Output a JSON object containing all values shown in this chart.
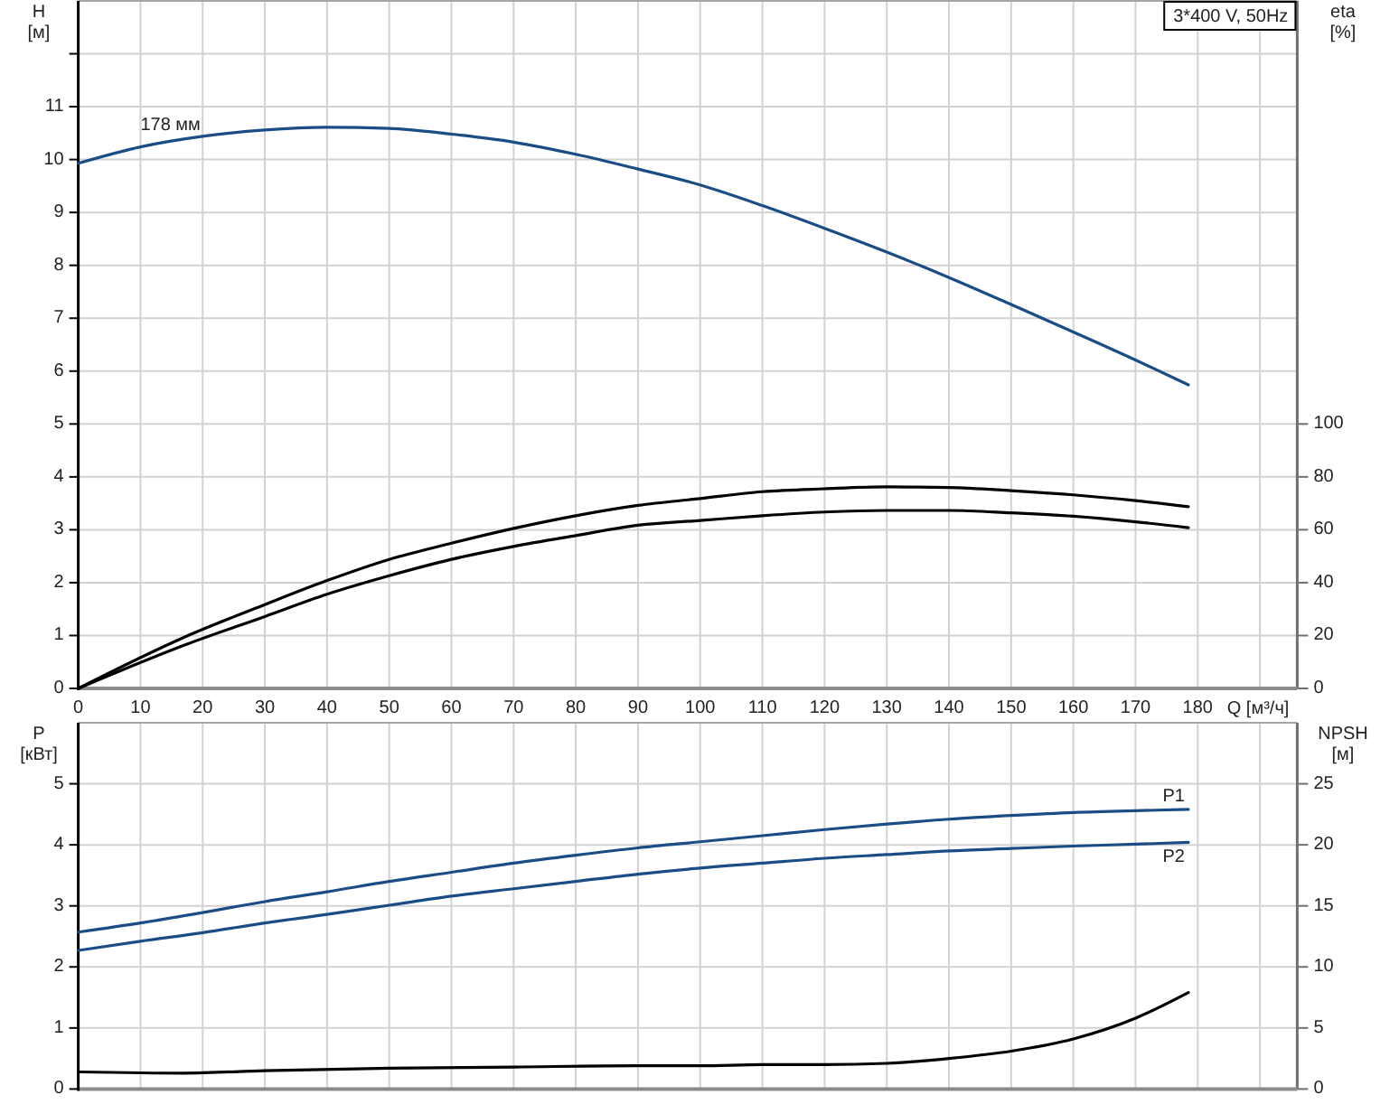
{
  "chart_data": [
    {
      "type": "line",
      "title": "3*400 V, 50Hz",
      "xlabel": "Q [м³/ч]",
      "ylabel": "H [м]",
      "y2label": "eta [%]",
      "xlim": [
        0,
        196
      ],
      "xticks": [
        0,
        10,
        20,
        30,
        40,
        50,
        60,
        70,
        80,
        90,
        100,
        110,
        120,
        130,
        140,
        150,
        160,
        170,
        180,
        {
          "value": 190,
          "label": null
        }
      ],
      "ylim": [
        0,
        13
      ],
      "yticks": [
        0,
        1,
        2,
        3,
        4,
        5,
        6,
        7,
        8,
        9,
        10,
        11,
        {
          "value": 12,
          "label": null
        }
      ],
      "y2lim": [
        0,
        260
      ],
      "y2ticks": [
        0,
        20,
        40,
        60,
        80,
        100
      ],
      "grid": true,
      "annotations": [
        {
          "text": "178 мм",
          "x": 10,
          "y": 10.4
        }
      ],
      "series": [
        {
          "color": "#1a4d85",
          "x": [
            0,
            10,
            20,
            30,
            40,
            50,
            60,
            70,
            80,
            90,
            100,
            110,
            120,
            130,
            140,
            150,
            160,
            170,
            178.5
          ],
          "values": [
            9.93,
            10.24,
            10.44,
            10.56,
            10.61,
            10.59,
            10.48,
            10.33,
            10.1,
            9.82,
            9.52,
            9.13,
            8.7,
            8.25,
            7.77,
            7.26,
            6.74,
            6.21,
            5.74
          ]
        },
        {
          "color": "#000000",
          "axis": "y2",
          "x": [
            0,
            17,
            30,
            40,
            50,
            60,
            70,
            80,
            90,
            100,
            110,
            120,
            130,
            140,
            150,
            160,
            170,
            178.5
          ],
          "values": [
            0,
            19.3,
            31.7,
            40.8,
            48.8,
            54.9,
            60.5,
            65.3,
            69.2,
            71.8,
            74.4,
            75.5,
            76.2,
            76,
            74.8,
            73.2,
            71,
            68.7
          ]
        },
        {
          "color": "#000000",
          "axis": "y2",
          "x": [
            0,
            17,
            30,
            40,
            50,
            60,
            70,
            80,
            90,
            100,
            110,
            120,
            130,
            140,
            150,
            160,
            170,
            178.5
          ],
          "values": [
            0,
            16.3,
            27.2,
            35.6,
            42.6,
            48.8,
            53.7,
            57.8,
            61.7,
            63.5,
            65.3,
            66.7,
            67.3,
            67.3,
            66.4,
            65.1,
            63,
            60.8
          ]
        }
      ]
    },
    {
      "type": "line",
      "ylabel": "P [кВт]",
      "y2label": "NPSH [м]",
      "xlim": [
        0,
        196
      ],
      "xticks": [
        0,
        10,
        20,
        30,
        40,
        50,
        60,
        70,
        80,
        90,
        100,
        110,
        120,
        130,
        140,
        150,
        160,
        170,
        180,
        190
      ],
      "tick_labels": "y",
      "ylim": [
        0,
        6
      ],
      "yticks": [
        0,
        1,
        2,
        3,
        4,
        5
      ],
      "y2lim": [
        0,
        30
      ],
      "y2ticks": [
        0,
        5,
        10,
        15,
        20,
        25
      ],
      "grid": true,
      "series": [
        {
          "name": "P1",
          "color": "#1a4d85",
          "x": [
            0,
            10,
            20,
            30,
            40,
            50,
            60,
            70,
            80,
            90,
            100,
            110,
            120,
            130,
            140,
            150,
            160,
            170,
            178.5
          ],
          "values": [
            2.57,
            2.72,
            2.89,
            3.07,
            3.23,
            3.4,
            3.55,
            3.7,
            3.83,
            3.95,
            4.05,
            4.15,
            4.25,
            4.34,
            4.42,
            4.48,
            4.53,
            4.56,
            4.58
          ]
        },
        {
          "name": "P2",
          "color": "#1a4d85",
          "x": [
            0,
            10,
            20,
            30,
            40,
            50,
            60,
            70,
            80,
            90,
            100,
            110,
            120,
            130,
            140,
            150,
            160,
            170,
            178.5
          ],
          "values": [
            2.27,
            2.42,
            2.56,
            2.72,
            2.86,
            3.01,
            3.16,
            3.28,
            3.4,
            3.52,
            3.62,
            3.7,
            3.78,
            3.84,
            3.9,
            3.94,
            3.98,
            4.01,
            4.04
          ]
        },
        {
          "color": "#000000",
          "axis": "y2",
          "x": [
            0,
            17,
            30,
            50,
            70,
            90,
            100,
            110,
            120,
            130,
            140,
            150,
            160,
            170,
            178.5
          ],
          "values": [
            1.4,
            1.3,
            1.5,
            1.7,
            1.8,
            1.9,
            1.9,
            2,
            2,
            2.1,
            2.5,
            3.1,
            4.1,
            5.8,
            7.9
          ]
        }
      ]
    }
  ]
}
